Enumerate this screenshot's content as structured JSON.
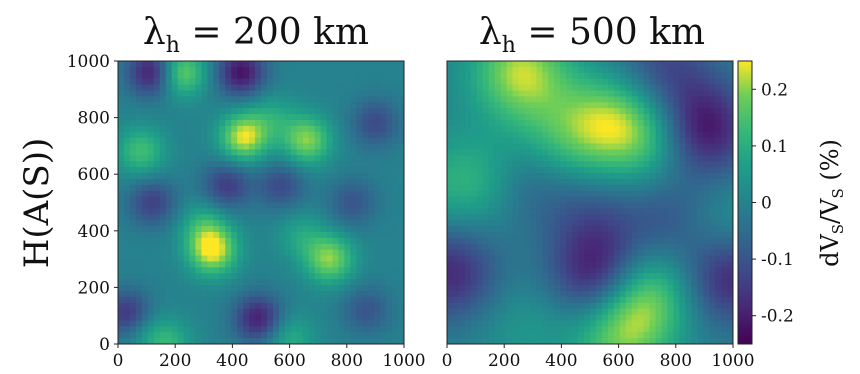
{
  "chart_data": [
    {
      "type": "heatmap",
      "title": {
        "prefix": "λ",
        "subscript": "h",
        "suffix": " = 200 km"
      },
      "ylabel": "H(A(S))",
      "xlabel": "",
      "xlim": [
        0,
        1000
      ],
      "ylim": [
        1000,
        0
      ],
      "x_ticks": [
        "0",
        "200",
        "400",
        "600",
        "800",
        "1000"
      ],
      "y_ticks": [
        "0",
        "200",
        "400",
        "600",
        "800",
        "1000"
      ],
      "x_tick_values": [
        0,
        200,
        400,
        600,
        800,
        1000
      ],
      "y_tick_values": [
        0,
        200,
        400,
        600,
        800,
        1000
      ],
      "colormap": "viridis",
      "value_range": [
        -0.25,
        0.25
      ],
      "features": [
        {
          "x": 330,
          "y": 330,
          "value": 0.25
        },
        {
          "x": 440,
          "y": 730,
          "value": 0.24
        },
        {
          "x": 660,
          "y": 720,
          "value": 0.2
        },
        {
          "x": 740,
          "y": 300,
          "value": 0.2
        },
        {
          "x": 80,
          "y": 680,
          "value": 0.14
        },
        {
          "x": 220,
          "y": 960,
          "value": 0.2
        },
        {
          "x": 70,
          "y": 70,
          "value": 0.1
        },
        {
          "x": 170,
          "y": 0,
          "value": 0.12
        },
        {
          "x": 600,
          "y": 20,
          "value": 0.1
        },
        {
          "x": 300,
          "y": 420,
          "value": 0.1
        },
        {
          "x": 540,
          "y": 800,
          "value": 0.08
        },
        {
          "x": 640,
          "y": 380,
          "value": 0.08
        },
        {
          "x": 40,
          "y": 100,
          "value": -0.22
        },
        {
          "x": 490,
          "y": 90,
          "value": -0.2
        },
        {
          "x": 120,
          "y": 960,
          "value": -0.22
        },
        {
          "x": 430,
          "y": 960,
          "value": -0.22
        },
        {
          "x": 380,
          "y": 560,
          "value": -0.15
        },
        {
          "x": 570,
          "y": 560,
          "value": -0.12
        },
        {
          "x": 120,
          "y": 500,
          "value": -0.14
        },
        {
          "x": 900,
          "y": 780,
          "value": -0.12
        },
        {
          "x": 870,
          "y": 120,
          "value": -0.1
        },
        {
          "x": 820,
          "y": 500,
          "value": -0.1
        }
      ]
    },
    {
      "type": "heatmap",
      "title": {
        "prefix": "λ",
        "subscript": "h",
        "suffix": " = 500 km"
      },
      "ylabel": "",
      "xlabel": "",
      "xlim": [
        0,
        1000
      ],
      "ylim": [
        1000,
        0
      ],
      "x_ticks": [
        "0",
        "200",
        "400",
        "600",
        "800",
        "1000"
      ],
      "x_tick_values": [
        0,
        200,
        400,
        600,
        800,
        1000
      ],
      "colormap": "viridis",
      "value_range": [
        -0.25,
        0.25
      ],
      "features": [
        {
          "x": 680,
          "y": 180,
          "value": 0.22
        },
        {
          "x": 600,
          "y": 20,
          "value": 0.16
        },
        {
          "x": 260,
          "y": 960,
          "value": 0.22
        },
        {
          "x": 560,
          "y": 780,
          "value": 0.18
        },
        {
          "x": 720,
          "y": 730,
          "value": 0.14
        },
        {
          "x": 380,
          "y": 720,
          "value": 0.1
        },
        {
          "x": 150,
          "y": 580,
          "value": 0.12
        },
        {
          "x": 0,
          "y": 560,
          "value": 0.06
        },
        {
          "x": 960,
          "y": 400,
          "value": 0.08
        },
        {
          "x": 270,
          "y": 60,
          "value": 0.05
        },
        {
          "x": 540,
          "y": 240,
          "value": -0.24
        },
        {
          "x": 890,
          "y": 760,
          "value": -0.24
        },
        {
          "x": 990,
          "y": 240,
          "value": -0.2
        },
        {
          "x": 10,
          "y": 250,
          "value": -0.18
        },
        {
          "x": 250,
          "y": 580,
          "value": -0.12
        },
        {
          "x": 760,
          "y": 980,
          "value": -0.12
        },
        {
          "x": 780,
          "y": 440,
          "value": -0.1
        },
        {
          "x": 500,
          "y": 450,
          "value": -0.08
        }
      ]
    }
  ],
  "colorbar": {
    "ticks": [
      "0.2",
      "0.1",
      "0",
      "-0.1",
      "-0.2"
    ],
    "tick_values": [
      0.2,
      0.1,
      0,
      -0.1,
      -0.2
    ],
    "range": [
      -0.25,
      0.25
    ],
    "label": {
      "d": "dV",
      "s1": "S",
      "slash": "/V",
      "s2": "S",
      "pct": " (%)"
    },
    "colormap": "viridis"
  }
}
